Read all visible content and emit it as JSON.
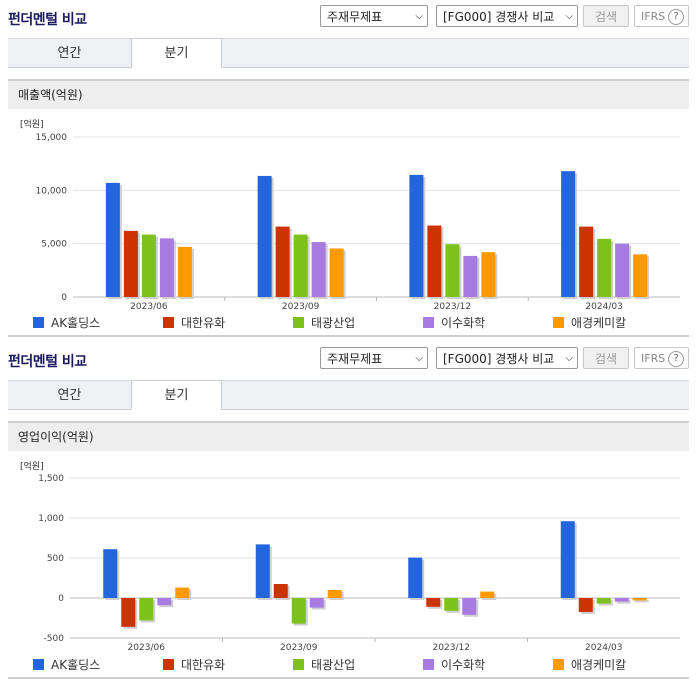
{
  "panels": [
    {
      "title": "펀더멘털 비교",
      "select1": "주재무제표",
      "select2": "[FG000] 경쟁사 비교",
      "search_label": "검색",
      "ifrs_label": "IFRS",
      "ifrs_help": "?",
      "tabs": [
        "연간",
        "분기"
      ],
      "active_tab": "분기",
      "section_title": "매출액(억원)",
      "unit": "[억원]"
    },
    {
      "title": "펀더멘털 비교",
      "select1": "주재무제표",
      "select2": "[FG000] 경쟁사 비교",
      "search_label": "검색",
      "ifrs_label": "IFRS",
      "ifrs_help": "?",
      "tabs": [
        "연간",
        "분기"
      ],
      "active_tab": "분기",
      "section_title": "영업이익(억원)",
      "unit": "[억원]"
    }
  ],
  "colors": {
    "AK홀딩스": "#2465dc",
    "대한유화": "#cc3300",
    "태광산업": "#7dc21c",
    "이수화학": "#a87be0",
    "애경케미칼": "#ff9900"
  },
  "chart_data": [
    {
      "type": "bar",
      "categories": [
        "2023/06",
        "2023/09",
        "2023/12",
        "2024/03"
      ],
      "ylim": [
        0,
        15000
      ],
      "yticks": [
        0,
        5000,
        10000,
        15000
      ],
      "ytick_labels": [
        "0",
        "5,000",
        "10,000",
        "15,000"
      ],
      "grid": true,
      "legend": "bottom",
      "series": [
        {
          "name": "AK홀딩스",
          "values": [
            10700,
            11350,
            11450,
            11800
          ]
        },
        {
          "name": "대한유화",
          "values": [
            6200,
            6600,
            6700,
            6600
          ]
        },
        {
          "name": "태광산업",
          "values": [
            5850,
            5850,
            4950,
            5450
          ]
        },
        {
          "name": "이수화학",
          "values": [
            5500,
            5150,
            3850,
            5000
          ]
        },
        {
          "name": "애경케미칼",
          "values": [
            4700,
            4550,
            4200,
            4000
          ]
        }
      ]
    },
    {
      "type": "bar",
      "categories": [
        "2023/06",
        "2023/09",
        "2023/12",
        "2024/03"
      ],
      "ylim": [
        -500,
        1500
      ],
      "yticks": [
        -500,
        0,
        500,
        1000,
        1500
      ],
      "ytick_labels": [
        "-500",
        "0",
        "500",
        "1,000",
        "1,500"
      ],
      "grid": true,
      "legend": "bottom",
      "series": [
        {
          "name": "AK홀딩스",
          "values": [
            610,
            670,
            505,
            960
          ]
        },
        {
          "name": "대한유화",
          "values": [
            -360,
            175,
            -110,
            -175
          ]
        },
        {
          "name": "태광산업",
          "values": [
            -280,
            -320,
            -160,
            -70
          ]
        },
        {
          "name": "이수화학",
          "values": [
            -90,
            -120,
            -210,
            -45
          ]
        },
        {
          "name": "애경케미칼",
          "values": [
            130,
            100,
            80,
            -30
          ]
        }
      ]
    }
  ]
}
